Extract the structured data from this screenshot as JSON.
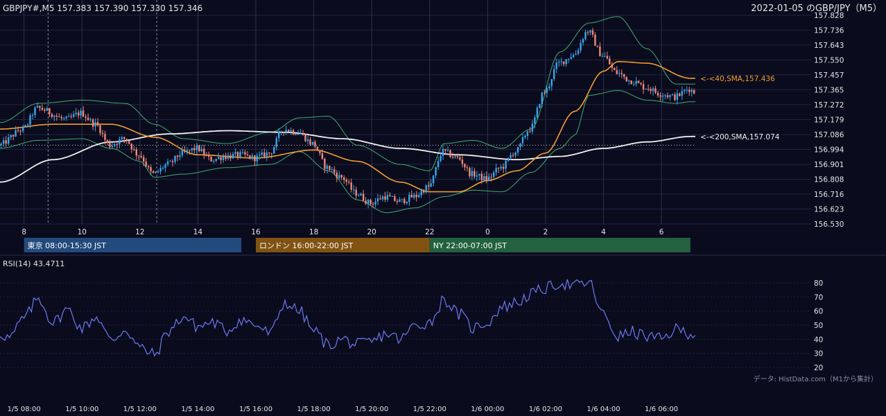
{
  "header": {
    "symbol_info": "GBPJPY#,M5 157.383 157.390 157.330 157.346",
    "date_title": "2022-01-05 のGBP/JPY（M5）"
  },
  "colors": {
    "background": "#0b0b1e",
    "grid": "#1e2740",
    "candle_up": "#3aa6ea",
    "candle_down": "#f08a78",
    "sma40": "#f0a030",
    "sma200": "#f2f2f2",
    "bollinger": "#3fae6e",
    "rsi": "#6d7bf0",
    "session_tokyo": "#234a7c",
    "session_london": "#805312",
    "session_ny": "#23613f"
  },
  "chart_data": [
    {
      "type": "candlestick",
      "ylim": [
        156.53,
        157.828
      ],
      "y_ticks": [
        "157.828",
        "157.736",
        "157.643",
        "157.550",
        "157.457",
        "157.365",
        "157.272",
        "157.179",
        "157.086",
        "156.994",
        "156.901",
        "156.808",
        "156.716",
        "156.623",
        "156.530"
      ],
      "x_ticks": [
        "8",
        "10",
        "12",
        "14",
        "16",
        "18",
        "20",
        "22",
        "0",
        "2",
        "4",
        "6"
      ],
      "x_tick_hours": [
        8,
        10,
        12,
        14,
        16,
        18,
        20,
        22,
        24,
        26,
        28,
        30
      ],
      "x_range_hours": [
        7.17,
        31.17
      ],
      "reference_hours": [
        8.83,
        12.58
      ],
      "reference_close": 157.02,
      "ohlc_keypoints": [
        [
          7.17,
          157.02
        ],
        [
          8.0,
          157.12
        ],
        [
          8.5,
          157.25
        ],
        [
          9.5,
          157.18
        ],
        [
          10.0,
          157.22
        ],
        [
          10.5,
          157.15
        ],
        [
          11.0,
          157.02
        ],
        [
          11.5,
          157.06
        ],
        [
          12.0,
          156.96
        ],
        [
          12.5,
          156.84
        ],
        [
          13.0,
          156.9
        ],
        [
          13.5,
          156.97
        ],
        [
          14.0,
          157.0
        ],
        [
          14.5,
          156.93
        ],
        [
          15.0,
          156.95
        ],
        [
          15.5,
          156.96
        ],
        [
          16.0,
          156.94
        ],
        [
          16.5,
          156.97
        ],
        [
          17.0,
          157.12
        ],
        [
          17.5,
          157.1
        ],
        [
          18.0,
          157.03
        ],
        [
          18.5,
          156.88
        ],
        [
          19.0,
          156.82
        ],
        [
          19.5,
          156.72
        ],
        [
          20.0,
          156.66
        ],
        [
          20.5,
          156.7
        ],
        [
          21.0,
          156.67
        ],
        [
          21.5,
          156.7
        ],
        [
          22.0,
          156.76
        ],
        [
          22.5,
          156.98
        ],
        [
          23.0,
          156.94
        ],
        [
          23.5,
          156.84
        ],
        [
          24.0,
          156.81
        ],
        [
          24.5,
          156.88
        ],
        [
          25.0,
          156.98
        ],
        [
          25.5,
          157.12
        ],
        [
          26.0,
          157.35
        ],
        [
          26.5,
          157.53
        ],
        [
          27.0,
          157.58
        ],
        [
          27.5,
          157.73
        ],
        [
          28.0,
          157.58
        ],
        [
          28.5,
          157.47
        ],
        [
          29.0,
          157.42
        ],
        [
          29.5,
          157.38
        ],
        [
          30.0,
          157.34
        ],
        [
          30.5,
          157.32
        ],
        [
          31.0,
          157.37
        ],
        [
          31.17,
          157.35
        ]
      ],
      "series": [
        {
          "name": "40,SMA",
          "label": "<-<40,SMA,157.436",
          "value": 157.436,
          "keypoints": [
            [
              7.17,
              157.12
            ],
            [
              9.0,
              157.15
            ],
            [
              11.0,
              157.15
            ],
            [
              12.5,
              157.07
            ],
            [
              14.0,
              156.96
            ],
            [
              16.0,
              156.94
            ],
            [
              18.0,
              156.99
            ],
            [
              19.5,
              156.92
            ],
            [
              21.0,
              156.79
            ],
            [
              22.0,
              156.73
            ],
            [
              23.0,
              156.73
            ],
            [
              24.0,
              156.8
            ],
            [
              25.0,
              156.86
            ],
            [
              26.0,
              156.97
            ],
            [
              27.0,
              157.23
            ],
            [
              28.0,
              157.48
            ],
            [
              28.5,
              157.54
            ],
            [
              29.5,
              157.53
            ],
            [
              31.0,
              157.436
            ]
          ]
        },
        {
          "name": "200,SMA",
          "label": "<-<200,SMA,157.074",
          "value": 157.074,
          "keypoints": [
            [
              7.17,
              156.79
            ],
            [
              9.0,
              156.93
            ],
            [
              11.0,
              157.04
            ],
            [
              13.0,
              157.09
            ],
            [
              15.0,
              157.11
            ],
            [
              17.0,
              157.1
            ],
            [
              19.0,
              157.06
            ],
            [
              21.0,
              157.0
            ],
            [
              23.0,
              156.96
            ],
            [
              25.0,
              156.93
            ],
            [
              26.5,
              156.95
            ],
            [
              28.0,
              157.0
            ],
            [
              29.5,
              157.04
            ],
            [
              31.0,
              157.074
            ]
          ]
        },
        {
          "name": "Bollinger",
          "upper_keypoints": [
            [
              7.17,
              157.16
            ],
            [
              8.5,
              157.28
            ],
            [
              10.0,
              157.3
            ],
            [
              11.5,
              157.28
            ],
            [
              12.5,
              157.15
            ],
            [
              13.5,
              157.06
            ],
            [
              15.0,
              157.03
            ],
            [
              16.5,
              157.1
            ],
            [
              17.5,
              157.19
            ],
            [
              18.5,
              157.2
            ],
            [
              19.5,
              157.02
            ],
            [
              21.0,
              156.9
            ],
            [
              22.0,
              156.86
            ],
            [
              22.5,
              157.03
            ],
            [
              23.5,
              157.05
            ],
            [
              24.5,
              157.0
            ],
            [
              25.5,
              157.12
            ],
            [
              26.5,
              157.6
            ],
            [
              27.5,
              157.78
            ],
            [
              28.5,
              157.82
            ],
            [
              29.5,
              157.62
            ],
            [
              30.5,
              157.4
            ],
            [
              31.0,
              157.4
            ]
          ],
          "lower_keypoints": [
            [
              7.17,
              157.0
            ],
            [
              8.5,
              157.05
            ],
            [
              10.0,
              157.06
            ],
            [
              11.0,
              157.0
            ],
            [
              12.0,
              156.92
            ],
            [
              12.5,
              156.82
            ],
            [
              13.5,
              156.84
            ],
            [
              15.0,
              156.88
            ],
            [
              16.5,
              156.9
            ],
            [
              17.5,
              156.98
            ],
            [
              18.5,
              156.86
            ],
            [
              19.5,
              156.68
            ],
            [
              20.5,
              156.6
            ],
            [
              21.5,
              156.63
            ],
            [
              22.5,
              156.7
            ],
            [
              23.5,
              156.74
            ],
            [
              24.5,
              156.73
            ],
            [
              25.5,
              156.85
            ],
            [
              26.5,
              157.0
            ],
            [
              27.0,
              157.08
            ],
            [
              27.5,
              157.33
            ],
            [
              28.5,
              157.36
            ],
            [
              29.5,
              157.3
            ],
            [
              30.5,
              157.28
            ],
            [
              31.0,
              157.29
            ]
          ]
        }
      ]
    },
    {
      "type": "line",
      "title": "RSI(14) 43.4711",
      "ylim": [
        15,
        90
      ],
      "y_ticks": [
        "80",
        "70",
        "60",
        "50",
        "40",
        "30",
        "20"
      ],
      "x_ticks": [
        "1/5 08:00",
        "1/5 10:00",
        "1/5 12:00",
        "1/5 14:00",
        "1/5 16:00",
        "1/5 18:00",
        "1/5 20:00",
        "1/5 22:00",
        "1/6 00:00",
        "1/6 02:00",
        "1/6 04:00",
        "1/6 06:00"
      ],
      "x_tick_hours": [
        8,
        10,
        12,
        14,
        16,
        18,
        20,
        22,
        24,
        26,
        28,
        30
      ],
      "x_range_hours": [
        7.17,
        31.17
      ],
      "series": [
        {
          "name": "RSI(14)",
          "keypoints": [
            [
              7.17,
              44
            ],
            [
              7.5,
              41
            ],
            [
              8.0,
              55
            ],
            [
              8.5,
              69
            ],
            [
              9.0,
              52
            ],
            [
              9.5,
              61
            ],
            [
              10.0,
              48
            ],
            [
              10.5,
              56
            ],
            [
              11.0,
              39
            ],
            [
              11.5,
              47
            ],
            [
              12.0,
              34
            ],
            [
              12.5,
              29
            ],
            [
              13.0,
              46
            ],
            [
              13.5,
              56
            ],
            [
              14.0,
              49
            ],
            [
              14.5,
              52
            ],
            [
              15.0,
              46
            ],
            [
              15.5,
              54
            ],
            [
              16.0,
              50
            ],
            [
              16.5,
              44
            ],
            [
              17.0,
              66
            ],
            [
              17.5,
              60
            ],
            [
              18.0,
              46
            ],
            [
              18.5,
              36
            ],
            [
              19.0,
              40
            ],
            [
              19.5,
              36
            ],
            [
              20.0,
              38
            ],
            [
              20.5,
              44
            ],
            [
              21.0,
              40
            ],
            [
              21.5,
              50
            ],
            [
              22.0,
              52
            ],
            [
              22.5,
              68
            ],
            [
              23.0,
              58
            ],
            [
              23.5,
              48
            ],
            [
              24.0,
              52
            ],
            [
              24.5,
              63
            ],
            [
              25.0,
              66
            ],
            [
              25.5,
              72
            ],
            [
              26.0,
              76
            ],
            [
              26.5,
              80
            ],
            [
              27.0,
              78
            ],
            [
              27.5,
              80
            ],
            [
              28.0,
              57
            ],
            [
              28.5,
              42
            ],
            [
              29.0,
              45
            ],
            [
              29.5,
              42
            ],
            [
              30.0,
              40
            ],
            [
              30.5,
              47
            ],
            [
              31.0,
              44.5
            ],
            [
              31.17,
              43.5
            ]
          ]
        }
      ]
    }
  ],
  "sessions": [
    {
      "label": "東京 08:00-15:30 JST",
      "start": 8.0,
      "end": 15.5,
      "color_key": "session_tokyo"
    },
    {
      "label": "ロンドン 16:00-22:00 JST",
      "start": 16.0,
      "end": 22.0,
      "color_key": "session_london"
    },
    {
      "label": "NY 22:00-07:00 JST",
      "start": 22.0,
      "end": 31.0,
      "color_key": "session_ny"
    }
  ],
  "source_note": "データ: HistData.com（M1から集計）"
}
